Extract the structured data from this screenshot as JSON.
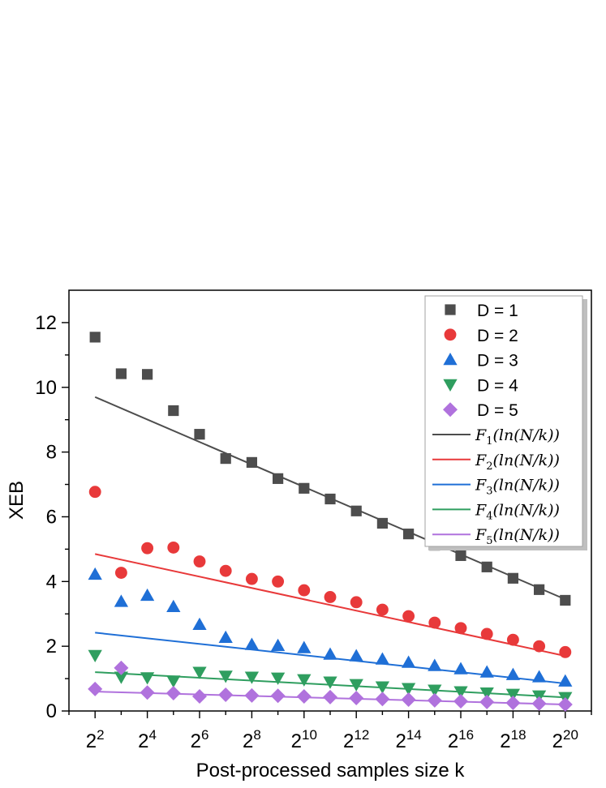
{
  "chart_data": {
    "type": "scatter",
    "title": "",
    "xlabel": "Post-processed samples size k",
    "ylabel": "XEB",
    "x_scale": "log2",
    "x_tick_labels": [
      {
        "base": "2",
        "exp": "2"
      },
      {
        "base": "2",
        "exp": "4"
      },
      {
        "base": "2",
        "exp": "6"
      },
      {
        "base": "2",
        "exp": "8"
      },
      {
        "base": "2",
        "exp": "10"
      },
      {
        "base": "2",
        "exp": "12"
      },
      {
        "base": "2",
        "exp": "14"
      },
      {
        "base": "2",
        "exp": "16"
      },
      {
        "base": "2",
        "exp": "18"
      },
      {
        "base": "2",
        "exp": "20"
      }
    ],
    "x_tick_values": [
      4,
      16,
      64,
      256,
      1024,
      4096,
      16384,
      65536,
      262144,
      1048576
    ],
    "y_tick_labels": [
      "0",
      "2",
      "4",
      "6",
      "8",
      "10",
      "12"
    ],
    "ylim": [
      0,
      12.6
    ],
    "legend_position": "top-right",
    "x": [
      4,
      8,
      16,
      32,
      64,
      128,
      256,
      512,
      1024,
      2048,
      4096,
      8192,
      16384,
      32768,
      65536,
      131072,
      262144,
      524288,
      1048576
    ],
    "series": [
      {
        "name": "D = 1",
        "marker": "square",
        "color": "#4d4d4d",
        "values": [
          11.55,
          10.42,
          10.4,
          9.28,
          8.55,
          7.8,
          7.68,
          7.18,
          6.88,
          6.55,
          6.18,
          5.8,
          5.47,
          5.12,
          4.8,
          4.45,
          4.1,
          3.75,
          3.42
        ]
      },
      {
        "name": "D = 2",
        "marker": "circle",
        "color": "#e8393a",
        "values": [
          6.77,
          4.27,
          5.03,
          5.05,
          4.62,
          4.33,
          4.08,
          4.0,
          3.73,
          3.52,
          3.36,
          3.13,
          2.93,
          2.73,
          2.56,
          2.38,
          2.2,
          2.0,
          1.82
        ]
      },
      {
        "name": "D = 3",
        "marker": "triangle-up",
        "color": "#1f6fd6",
        "values": [
          4.22,
          3.38,
          3.57,
          3.22,
          2.67,
          2.27,
          2.05,
          2.02,
          1.95,
          1.75,
          1.7,
          1.6,
          1.5,
          1.4,
          1.3,
          1.2,
          1.12,
          1.05,
          0.92
        ]
      },
      {
        "name": "D = 4",
        "marker": "triangle-down",
        "color": "#2f9e5f",
        "values": [
          1.72,
          1.05,
          1.03,
          0.93,
          1.2,
          1.08,
          1.05,
          1.02,
          0.97,
          0.9,
          0.82,
          0.75,
          0.7,
          0.65,
          0.6,
          0.56,
          0.52,
          0.47,
          0.42
        ]
      },
      {
        "name": "D = 5",
        "marker": "diamond",
        "color": "#b072dd",
        "values": [
          0.68,
          1.33,
          0.57,
          0.55,
          0.45,
          0.5,
          0.48,
          0.47,
          0.45,
          0.43,
          0.4,
          0.37,
          0.35,
          0.33,
          0.3,
          0.28,
          0.25,
          0.23,
          0.2
        ]
      }
    ],
    "fits": [
      {
        "fn": "F",
        "sub": "1",
        "arg": "(ln(N/k))",
        "color": "#4d4d4d",
        "y_start": 9.7,
        "y_end": 3.45
      },
      {
        "fn": "F",
        "sub": "2",
        "arg": "(ln(N/k))",
        "color": "#e8393a",
        "y_start": 4.85,
        "y_end": 1.7
      },
      {
        "fn": "F",
        "sub": "3",
        "arg": "(ln(N/k))",
        "color": "#1f6fd6",
        "y_start": 2.42,
        "y_end": 0.85
      },
      {
        "fn": "F",
        "sub": "4",
        "arg": "(ln(N/k))",
        "color": "#2f9e5f",
        "y_start": 1.2,
        "y_end": 0.42
      },
      {
        "fn": "F",
        "sub": "5",
        "arg": "(ln(N/k))",
        "color": "#b072dd",
        "y_start": 0.6,
        "y_end": 0.2
      }
    ]
  }
}
